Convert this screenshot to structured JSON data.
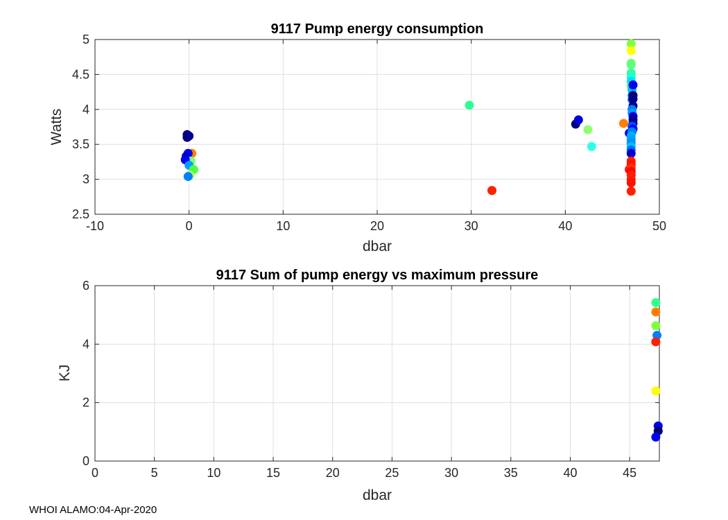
{
  "chart_data": [
    {
      "type": "scatter",
      "title": "9117 Pump energy consumption",
      "xlabel": "dbar",
      "ylabel": "Watts",
      "xlim": [
        -10,
        50
      ],
      "ylim": [
        2.5,
        5
      ],
      "xticks": [
        "-10",
        "0",
        "10",
        "20",
        "30",
        "40",
        "50"
      ],
      "yticks": [
        "2.5",
        "3",
        "3.5",
        "4",
        "4.5",
        "5"
      ],
      "grid": true,
      "points": [
        {
          "x": -0.2,
          "y": 3.64,
          "color": "#00006f"
        },
        {
          "x": -0.2,
          "y": 3.6,
          "color": "#000080"
        },
        {
          "x": 0.0,
          "y": 3.62,
          "color": "#00008f"
        },
        {
          "x": 0.3,
          "y": 3.37,
          "color": "#ff7f00"
        },
        {
          "x": -0.1,
          "y": 3.37,
          "color": "#0000ff"
        },
        {
          "x": -0.3,
          "y": 3.33,
          "color": "#0000cf"
        },
        {
          "x": 0.2,
          "y": 3.26,
          "color": "#7fff7f"
        },
        {
          "x": -0.4,
          "y": 3.28,
          "color": "#0000ef"
        },
        {
          "x": 0.0,
          "y": 3.2,
          "color": "#009fff"
        },
        {
          "x": 0.5,
          "y": 3.14,
          "color": "#50ff40"
        },
        {
          "x": 0.1,
          "y": 3.06,
          "color": "#9fff5f"
        },
        {
          "x": -0.1,
          "y": 3.04,
          "color": "#007fff"
        },
        {
          "x": 29.8,
          "y": 4.06,
          "color": "#2fff8f"
        },
        {
          "x": 32.2,
          "y": 2.84,
          "color": "#ff2000"
        },
        {
          "x": 41.1,
          "y": 3.79,
          "color": "#00007f"
        },
        {
          "x": 41.4,
          "y": 3.85,
          "color": "#0000df"
        },
        {
          "x": 42.4,
          "y": 3.71,
          "color": "#8fff6f"
        },
        {
          "x": 42.8,
          "y": 3.47,
          "color": "#2fffef"
        },
        {
          "x": 46.2,
          "y": 3.8,
          "color": "#ff7f00"
        },
        {
          "x": 46.8,
          "y": 3.66,
          "color": "#0000ff"
        },
        {
          "x": 46.8,
          "y": 3.14,
          "color": "#ff1000"
        },
        {
          "x": 47.0,
          "y": 4.94,
          "color": "#7fff3f"
        },
        {
          "x": 47.0,
          "y": 4.84,
          "color": "#ffff00"
        },
        {
          "x": 47.0,
          "y": 4.66,
          "color": "#6fff6f"
        },
        {
          "x": 47.0,
          "y": 4.64,
          "color": "#5fff7f"
        },
        {
          "x": 47.0,
          "y": 4.52,
          "color": "#2fff9f"
        },
        {
          "x": 47.0,
          "y": 4.46,
          "color": "#1fffcf"
        },
        {
          "x": 47.0,
          "y": 4.4,
          "color": "#00dfff"
        },
        {
          "x": 47.0,
          "y": 4.33,
          "color": "#5fff6f"
        },
        {
          "x": 47.1,
          "y": 4.28,
          "color": "#00bfff"
        },
        {
          "x": 47.1,
          "y": 4.2,
          "color": "#009fff"
        },
        {
          "x": 47.1,
          "y": 4.14,
          "color": "#007fff"
        },
        {
          "x": 47.2,
          "y": 4.35,
          "color": "#0000ef"
        },
        {
          "x": 47.2,
          "y": 4.2,
          "color": "#00006f"
        },
        {
          "x": 47.2,
          "y": 4.15,
          "color": "#00008f"
        },
        {
          "x": 47.2,
          "y": 4.05,
          "color": "#00007f"
        },
        {
          "x": 47.1,
          "y": 4.0,
          "color": "#007fff"
        },
        {
          "x": 47.1,
          "y": 3.95,
          "color": "#009fff"
        },
        {
          "x": 47.2,
          "y": 3.9,
          "color": "#0000cf"
        },
        {
          "x": 47.2,
          "y": 3.85,
          "color": "#00009f"
        },
        {
          "x": 47.2,
          "y": 3.8,
          "color": "#00008f"
        },
        {
          "x": 47.1,
          "y": 3.76,
          "color": "#0050ff"
        },
        {
          "x": 47.2,
          "y": 3.72,
          "color": "#0000ff"
        },
        {
          "x": 47.1,
          "y": 3.68,
          "color": "#007fff"
        },
        {
          "x": 47.0,
          "y": 3.62,
          "color": "#00afff"
        },
        {
          "x": 47.0,
          "y": 3.57,
          "color": "#009fff"
        },
        {
          "x": 47.0,
          "y": 3.52,
          "color": "#008fff"
        },
        {
          "x": 47.0,
          "y": 3.47,
          "color": "#00bfff"
        },
        {
          "x": 47.0,
          "y": 3.42,
          "color": "#006fff"
        },
        {
          "x": 47.0,
          "y": 3.37,
          "color": "#0000cf"
        },
        {
          "x": 47.0,
          "y": 3.26,
          "color": "#ff2000"
        },
        {
          "x": 47.0,
          "y": 3.21,
          "color": "#ff1000"
        },
        {
          "x": 47.0,
          "y": 3.16,
          "color": "#ff2f00"
        },
        {
          "x": 47.0,
          "y": 3.11,
          "color": "#ff0000"
        },
        {
          "x": 47.0,
          "y": 3.06,
          "color": "#ff1f00"
        },
        {
          "x": 47.0,
          "y": 3.0,
          "color": "#ff2000"
        },
        {
          "x": 47.0,
          "y": 2.95,
          "color": "#ff1000"
        },
        {
          "x": 47.0,
          "y": 2.83,
          "color": "#ff2000"
        }
      ]
    },
    {
      "type": "scatter",
      "title": "9117 Sum of pump energy vs maximum pressure",
      "xlabel": "dbar",
      "ylabel": "KJ",
      "xlim": [
        0,
        47.5
      ],
      "ylim": [
        0,
        6
      ],
      "xticks": [
        "0",
        "5",
        "10",
        "15",
        "20",
        "25",
        "30",
        "35",
        "40",
        "45"
      ],
      "yticks": [
        "0",
        "2",
        "4",
        "6"
      ],
      "grid": true,
      "points": [
        {
          "x": 47.2,
          "y": 5.42,
          "color": "#2fff8f"
        },
        {
          "x": 47.2,
          "y": 5.1,
          "color": "#ff7f00"
        },
        {
          "x": 47.2,
          "y": 4.63,
          "color": "#7fff3f"
        },
        {
          "x": 47.3,
          "y": 4.3,
          "color": "#007fff"
        },
        {
          "x": 47.2,
          "y": 4.08,
          "color": "#ff2000"
        },
        {
          "x": 47.2,
          "y": 2.4,
          "color": "#ffff00"
        },
        {
          "x": 47.4,
          "y": 1.2,
          "color": "#0000ef"
        },
        {
          "x": 47.4,
          "y": 1.03,
          "color": "#00006f"
        },
        {
          "x": 47.2,
          "y": 0.82,
          "color": "#0000ff"
        }
      ]
    }
  ],
  "footer": "WHOI ALAMO:04-Apr-2020"
}
